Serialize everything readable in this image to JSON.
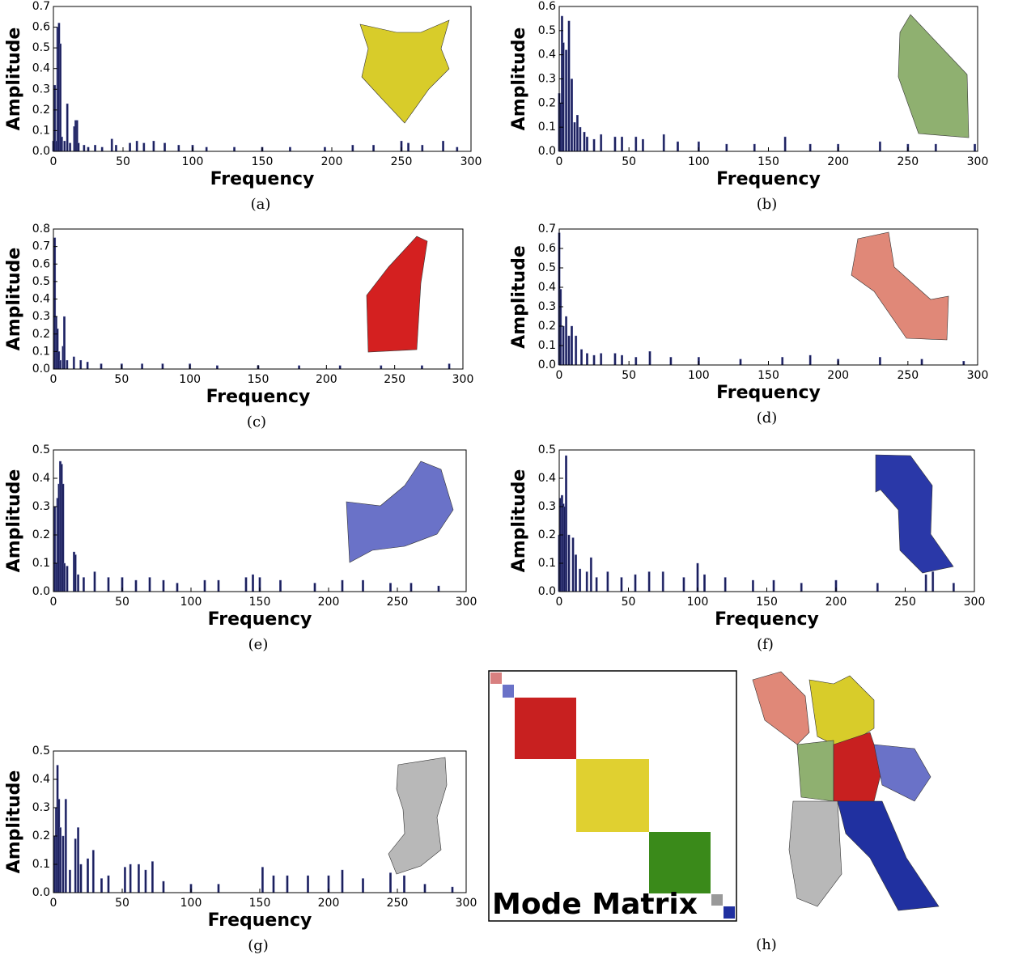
{
  "chart_data": [
    {
      "type": "bar",
      "caption": "(a)",
      "xlabel": "Frequency",
      "ylabel": "Amplitude",
      "color": "#1b1f5c",
      "x": [
        0,
        1,
        2,
        3,
        4,
        5,
        6,
        8,
        10,
        12,
        15,
        16,
        17,
        18,
        22,
        25,
        30,
        35,
        42,
        45,
        55,
        60,
        65,
        72,
        80,
        90,
        100,
        110,
        130,
        150,
        170,
        195,
        215,
        230,
        250,
        255,
        265,
        280,
        290
      ],
      "values": [
        0.05,
        0.32,
        0.05,
        0.6,
        0.62,
        0.52,
        0.07,
        0.05,
        0.23,
        0.04,
        0.12,
        0.15,
        0.15,
        0.04,
        0.03,
        0.02,
        0.03,
        0.02,
        0.06,
        0.03,
        0.04,
        0.05,
        0.04,
        0.05,
        0.04,
        0.03,
        0.03,
        0.02,
        0.02,
        0.02,
        0.02,
        0.02,
        0.03,
        0.03,
        0.05,
        0.04,
        0.03,
        0.05,
        0.02
      ],
      "xlim": [
        0,
        300
      ],
      "xticks": [
        0,
        50,
        100,
        150,
        200,
        250,
        300
      ],
      "ylim": [
        0,
        0.7
      ],
      "yticks": [
        {
          "value": 0,
          "label": "0.0"
        },
        0.1,
        0.2,
        0.3,
        0.4,
        0.5,
        0.6,
        0.7
      ]
    },
    {
      "type": "bar",
      "caption": "(b)",
      "xlabel": "Frequency",
      "ylabel": "Amplitude",
      "color": "#1b1f5c",
      "x": [
        0,
        1,
        2,
        3,
        5,
        7,
        9,
        11,
        13,
        15,
        18,
        20,
        25,
        30,
        40,
        45,
        55,
        60,
        75,
        85,
        100,
        120,
        140,
        162,
        180,
        200,
        230,
        250,
        270,
        298
      ],
      "values": [
        0.24,
        0.2,
        0.56,
        0.45,
        0.42,
        0.54,
        0.3,
        0.12,
        0.15,
        0.1,
        0.08,
        0.06,
        0.05,
        0.07,
        0.06,
        0.06,
        0.06,
        0.05,
        0.07,
        0.04,
        0.04,
        0.03,
        0.03,
        0.06,
        0.03,
        0.03,
        0.04,
        0.03,
        0.03,
        0.03
      ],
      "xlim": [
        0,
        300
      ],
      "xticks": [
        0,
        50,
        100,
        150,
        200,
        250,
        300
      ],
      "ylim": [
        0,
        0.6
      ],
      "yticks": [
        {
          "value": 0,
          "label": "0.0"
        },
        0.1,
        0.2,
        0.3,
        0.4,
        0.5,
        0.6
      ]
    },
    {
      "type": "bar",
      "caption": "(c)",
      "xlabel": "Frequency",
      "ylabel": "Amplitude",
      "color": "#1b1f5c",
      "x": [
        1,
        2,
        3,
        4,
        5,
        7,
        8,
        10,
        15,
        20,
        25,
        35,
        50,
        65,
        80,
        100,
        120,
        150,
        180,
        210,
        240,
        270,
        290
      ],
      "values": [
        0.75,
        0.3,
        0.23,
        0.1,
        0.05,
        0.13,
        0.3,
        0.05,
        0.07,
        0.05,
        0.04,
        0.03,
        0.03,
        0.03,
        0.03,
        0.03,
        0.02,
        0.02,
        0.02,
        0.02,
        0.02,
        0.02,
        0.03
      ],
      "xlim": [
        0,
        300
      ],
      "xticks": [
        0,
        50,
        100,
        150,
        200,
        250,
        300
      ],
      "ylim": [
        0,
        0.8
      ],
      "yticks": [
        {
          "value": 0,
          "label": "0.0"
        },
        0.1,
        0.2,
        0.3,
        0.4,
        0.5,
        0.6,
        0.7,
        0.8
      ]
    },
    {
      "type": "bar",
      "caption": "(d)",
      "xlabel": "Frequency",
      "ylabel": "Amplitude",
      "color": "#1b1f5c",
      "x": [
        0,
        1,
        3,
        5,
        7,
        9,
        12,
        16,
        20,
        25,
        30,
        40,
        45,
        55,
        65,
        80,
        100,
        130,
        160,
        180,
        200,
        230,
        260,
        290
      ],
      "values": [
        0.68,
        0.39,
        0.2,
        0.25,
        0.15,
        0.2,
        0.15,
        0.08,
        0.06,
        0.05,
        0.06,
        0.06,
        0.05,
        0.04,
        0.07,
        0.04,
        0.04,
        0.03,
        0.04,
        0.05,
        0.03,
        0.04,
        0.03,
        0.02
      ],
      "xlim": [
        0,
        300
      ],
      "xticks": [
        0,
        50,
        100,
        150,
        200,
        250,
        300
      ],
      "ylim": [
        0,
        0.7
      ],
      "yticks": [
        {
          "value": 0,
          "label": "0.0"
        },
        0.1,
        0.2,
        0.3,
        0.4,
        0.5,
        0.6,
        0.7
      ]
    },
    {
      "type": "bar",
      "caption": "(e)",
      "xlabel": "Frequency",
      "ylabel": "Amplitude",
      "color": "#1b1f5c",
      "x": [
        1,
        2,
        3,
        4,
        5,
        6,
        7,
        8,
        10,
        15,
        16,
        18,
        22,
        30,
        40,
        50,
        60,
        70,
        80,
        90,
        110,
        120,
        140,
        145,
        150,
        165,
        190,
        210,
        225,
        245,
        260,
        280
      ],
      "values": [
        0.3,
        0.1,
        0.33,
        0.38,
        0.46,
        0.45,
        0.38,
        0.1,
        0.09,
        0.14,
        0.13,
        0.06,
        0.05,
        0.07,
        0.05,
        0.05,
        0.04,
        0.05,
        0.04,
        0.03,
        0.04,
        0.04,
        0.05,
        0.06,
        0.05,
        0.04,
        0.03,
        0.04,
        0.04,
        0.03,
        0.03,
        0.02
      ],
      "xlim": [
        0,
        300
      ],
      "xticks": [
        0,
        50,
        100,
        150,
        200,
        250,
        300
      ],
      "ylim": [
        0,
        0.5
      ],
      "yticks": [
        {
          "value": 0,
          "label": "0.0"
        },
        0.1,
        0.2,
        0.3,
        0.4,
        0.5
      ]
    },
    {
      "type": "bar",
      "caption": "(f)",
      "xlabel": "Frequency",
      "ylabel": "Amplitude",
      "color": "#1b1f5c",
      "x": [
        0,
        1,
        2,
        3,
        4,
        5,
        7,
        10,
        12,
        15,
        20,
        23,
        27,
        35,
        45,
        55,
        65,
        75,
        90,
        100,
        105,
        120,
        140,
        155,
        175,
        200,
        230,
        265,
        270,
        285
      ],
      "values": [
        0.2,
        0.33,
        0.34,
        0.31,
        0.3,
        0.48,
        0.2,
        0.19,
        0.13,
        0.08,
        0.07,
        0.12,
        0.05,
        0.07,
        0.05,
        0.06,
        0.07,
        0.07,
        0.05,
        0.1,
        0.06,
        0.05,
        0.04,
        0.04,
        0.03,
        0.04,
        0.03,
        0.06,
        0.07,
        0.03
      ],
      "xlim": [
        0,
        300
      ],
      "xticks": [
        0,
        50,
        100,
        150,
        200,
        250,
        300
      ],
      "ylim": [
        0,
        0.5
      ],
      "yticks": [
        {
          "value": 0,
          "label": "0.0"
        },
        0.1,
        0.2,
        0.3,
        0.4,
        0.5
      ]
    },
    {
      "type": "bar",
      "caption": "(g)",
      "xlabel": "Frequency",
      "ylabel": "Amplitude",
      "color": "#1b1f5c",
      "x": [
        1,
        2,
        3,
        4,
        5,
        7,
        9,
        12,
        16,
        18,
        20,
        25,
        29,
        35,
        40,
        52,
        56,
        62,
        67,
        72,
        80,
        100,
        120,
        152,
        160,
        170,
        185,
        200,
        210,
        225,
        245,
        255,
        270,
        290
      ],
      "values": [
        0.2,
        0.3,
        0.45,
        0.33,
        0.23,
        0.2,
        0.33,
        0.08,
        0.19,
        0.23,
        0.1,
        0.12,
        0.15,
        0.05,
        0.06,
        0.09,
        0.1,
        0.1,
        0.08,
        0.11,
        0.04,
        0.03,
        0.03,
        0.09,
        0.06,
        0.06,
        0.06,
        0.06,
        0.08,
        0.05,
        0.07,
        0.06,
        0.03,
        0.02
      ],
      "xlim": [
        0,
        300
      ],
      "xticks": [
        0,
        50,
        100,
        150,
        200,
        250,
        300
      ],
      "ylim": [
        0,
        0.5
      ],
      "yticks": [
        {
          "value": 0,
          "label": "0.0"
        },
        0.1,
        0.2,
        0.3,
        0.4,
        0.5
      ]
    }
  ],
  "figure": {
    "matrix_label": "Mode Matrix",
    "caption_h": "(h)"
  }
}
